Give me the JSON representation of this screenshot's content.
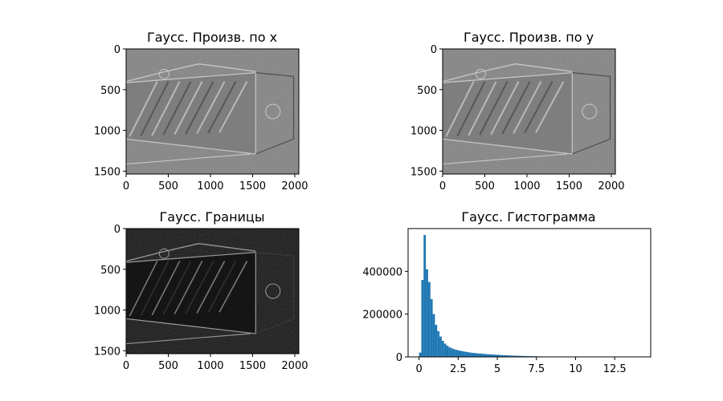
{
  "chart_data": [
    {
      "type": "image",
      "title": "Гаусс. Произв. по x",
      "image_kind": "derivative-x",
      "xlim": [
        0,
        2048
      ],
      "ylim": [
        1536,
        0
      ],
      "xticks": [
        0,
        500,
        1000,
        1500,
        2000
      ],
      "yticks": [
        0,
        500,
        1000,
        1500
      ],
      "colormap": "gray"
    },
    {
      "type": "image",
      "title": "Гаусс. Произв. по y",
      "image_kind": "derivative-y",
      "xlim": [
        0,
        2048
      ],
      "ylim": [
        1536,
        0
      ],
      "xticks": [
        0,
        500,
        1000,
        1500,
        2000
      ],
      "yticks": [
        0,
        500,
        1000,
        1500
      ],
      "colormap": "gray"
    },
    {
      "type": "image",
      "title": "Гаусс. Границы",
      "image_kind": "edges",
      "xlim": [
        0,
        2048
      ],
      "ylim": [
        1536,
        0
      ],
      "xticks": [
        0,
        500,
        1000,
        1500,
        2000
      ],
      "yticks": [
        0,
        500,
        1000,
        1500
      ],
      "colormap": "gray"
    },
    {
      "type": "bar",
      "title": "Гаусс. Гистограмма",
      "xlim": [
        -0.7,
        14.8
      ],
      "ylim": [
        0,
        600000
      ],
      "xticks": [
        0.0,
        2.5,
        5.0,
        7.5,
        10.0,
        12.5
      ],
      "yticks": [
        0,
        200000,
        400000
      ],
      "bin_width": 0.145,
      "bin_start": 0.0,
      "values": [
        20000,
        360000,
        570000,
        410000,
        350000,
        270000,
        200000,
        150000,
        120000,
        95000,
        75000,
        62000,
        52000,
        45000,
        40000,
        36000,
        33000,
        30000,
        28000,
        26000,
        24000,
        22000,
        20500,
        19000,
        18000,
        17000,
        16000,
        15000,
        14000,
        13200,
        12500,
        11800,
        11000,
        10400,
        9800,
        9200,
        8600,
        8000,
        7500,
        7000,
        6500,
        6000,
        5600,
        5200,
        4800,
        4400,
        4100,
        3800,
        3500,
        3200,
        2900,
        2650,
        2400,
        2200,
        2000,
        1800,
        1600,
        1450,
        1300,
        1150,
        1000,
        800,
        500
      ],
      "bar_color": "#1f77b4"
    }
  ]
}
